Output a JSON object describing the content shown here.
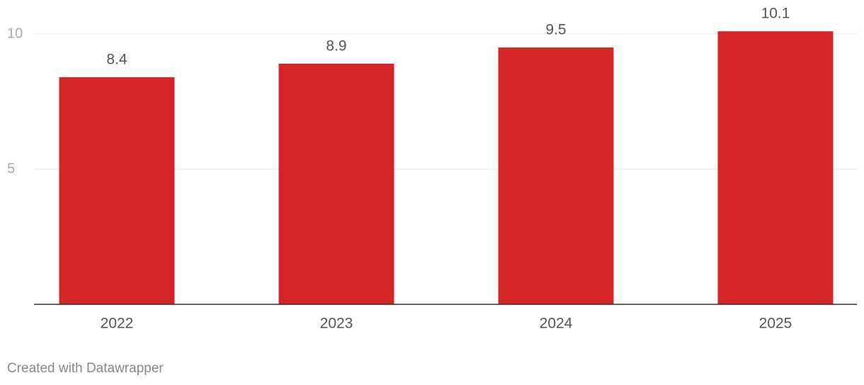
{
  "chart_data": {
    "type": "bar",
    "categories": [
      "2022",
      "2023",
      "2024",
      "2025"
    ],
    "values": [
      8.4,
      8.9,
      9.5,
      10.1
    ],
    "color": "#d42628",
    "ylim": [
      0,
      10
    ],
    "yticks": [
      5,
      10
    ],
    "grid": true,
    "credit": "Created with Datawrapper"
  }
}
